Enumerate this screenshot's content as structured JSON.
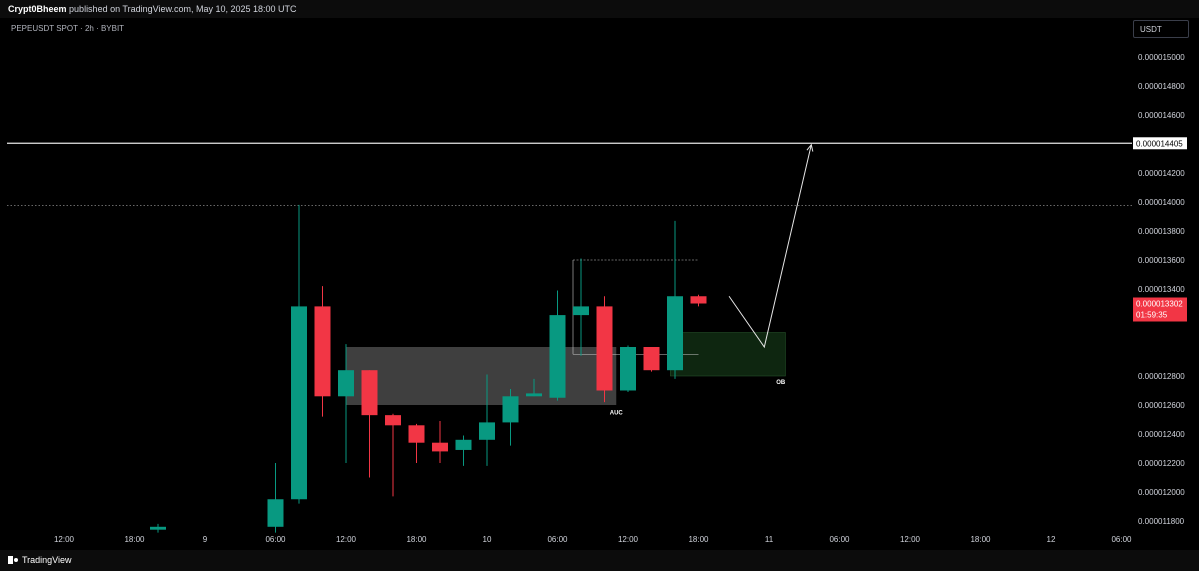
{
  "header": {
    "author": "Crypt0Bheem",
    "published": "published on TradingView.com, May 10, 2025 18:00 UTC"
  },
  "symbol_line": "PEPEUSDT SPOT · 2h · BYBIT",
  "unit": "USDT",
  "footer": {
    "brand": "TradingView"
  },
  "colors": {
    "up": "#089981",
    "down": "#f23645",
    "background": "#000000",
    "zone_gray": "#4a4a4a",
    "zone_green": "#0f2a12"
  },
  "chart_data": {
    "type": "candlestick",
    "title": "",
    "ylim": [
      1.175e-05,
      1.52e-05
    ],
    "y_ticks": [
      "0.000015000",
      "0.000014800",
      "0.000014600",
      "0.000014200",
      "0.000014000",
      "0.000013800",
      "0.000013600",
      "0.000013400",
      "0.000012800",
      "0.000012600",
      "0.000012400",
      "0.000012200",
      "0.000012000",
      "0.000011800"
    ],
    "y_tick_values": [
      1.5e-05,
      1.48e-05,
      1.46e-05,
      1.42e-05,
      1.4e-05,
      1.38e-05,
      1.36e-05,
      1.34e-05,
      1.28e-05,
      1.26e-05,
      1.24e-05,
      1.22e-05,
      1.2e-05,
      1.18e-05
    ],
    "x_ticks": [
      {
        "label": "12:00",
        "i": -18
      },
      {
        "label": "18:00",
        "i": -15
      },
      {
        "label": "9",
        "i": -12
      },
      {
        "label": "06:00",
        "i": -9
      },
      {
        "label": "12:00",
        "i": -6
      },
      {
        "label": "18:00",
        "i": -3
      },
      {
        "label": "10",
        "i": 0
      },
      {
        "label": "06:00",
        "i": 3
      },
      {
        "label": "12:00",
        "i": 6
      },
      {
        "label": "18:00",
        "i": 9
      },
      {
        "label": "11",
        "i": 12
      },
      {
        "label": "06:00",
        "i": 15
      },
      {
        "label": "12:00",
        "i": 18
      },
      {
        "label": "18:00",
        "i": 21
      },
      {
        "label": "12",
        "i": 24
      },
      {
        "label": "06:00",
        "i": 27
      }
    ],
    "candles": [
      {
        "i": -14,
        "o": 1.174e-05,
        "h": 1.178e-05,
        "l": 1.172e-05,
        "c": 1.176e-05
      },
      {
        "i": -9,
        "o": 1.176e-05,
        "h": 1.22e-05,
        "l": 1.172e-05,
        "c": 1.195e-05
      },
      {
        "i": -8,
        "o": 1.195e-05,
        "h": 1.398e-05,
        "l": 1.192e-05,
        "c": 1.328e-05
      },
      {
        "i": -7,
        "o": 1.328e-05,
        "h": 1.342e-05,
        "l": 1.252e-05,
        "c": 1.266e-05
      },
      {
        "i": -6,
        "o": 1.266e-05,
        "h": 1.302e-05,
        "l": 1.22e-05,
        "c": 1.284e-05
      },
      {
        "i": -5,
        "o": 1.284e-05,
        "h": 1.284e-05,
        "l": 1.21e-05,
        "c": 1.253e-05
      },
      {
        "i": -4,
        "o": 1.253e-05,
        "h": 1.254e-05,
        "l": 1.197e-05,
        "c": 1.246e-05
      },
      {
        "i": -3,
        "o": 1.246e-05,
        "h": 1.247e-05,
        "l": 1.22e-05,
        "c": 1.234e-05
      },
      {
        "i": -2,
        "o": 1.234e-05,
        "h": 1.249e-05,
        "l": 1.22e-05,
        "c": 1.228e-05
      },
      {
        "i": -1,
        "o": 1.229e-05,
        "h": 1.239e-05,
        "l": 1.218e-05,
        "c": 1.236e-05
      },
      {
        "i": 0,
        "o": 1.236e-05,
        "h": 1.281e-05,
        "l": 1.218e-05,
        "c": 1.248e-05
      },
      {
        "i": 1,
        "o": 1.248e-05,
        "h": 1.271e-05,
        "l": 1.232e-05,
        "c": 1.266e-05
      },
      {
        "i": 2,
        "o": 1.266e-05,
        "h": 1.278e-05,
        "l": 1.266e-05,
        "c": 1.268e-05
      },
      {
        "i": 3,
        "o": 1.265e-05,
        "h": 1.339e-05,
        "l": 1.263e-05,
        "c": 1.322e-05
      },
      {
        "i": 4,
        "o": 1.322e-05,
        "h": 1.361e-05,
        "l": 1.294e-05,
        "c": 1.328e-05
      },
      {
        "i": 5,
        "o": 1.328e-05,
        "h": 1.335e-05,
        "l": 1.262e-05,
        "c": 1.27e-05
      },
      {
        "i": 6,
        "o": 1.27e-05,
        "h": 1.301e-05,
        "l": 1.269e-05,
        "c": 1.3e-05
      },
      {
        "i": 7,
        "o": 1.3e-05,
        "h": 1.3e-05,
        "l": 1.283e-05,
        "c": 1.284e-05
      },
      {
        "i": 8,
        "o": 1.284e-05,
        "h": 1.387e-05,
        "l": 1.278e-05,
        "c": 1.335e-05
      },
      {
        "i": 9,
        "o": 1.335e-05,
        "h": 1.336e-05,
        "l": 1.328e-05,
        "c": 1.33e-05
      }
    ],
    "horizontal_lines": [
      {
        "value": 1.4405e-05,
        "style": "solid",
        "label": "0.000014405"
      },
      {
        "value": 1.3975e-05,
        "style": "dotted"
      }
    ],
    "zones": [
      {
        "x0": -6,
        "x1": 5.5,
        "y0": 1.26e-05,
        "y1": 1.3e-05,
        "color": "gray"
      },
      {
        "x0": 7.8,
        "x1": 12.7,
        "y0": 1.28e-05,
        "y1": 1.31e-05,
        "color": "green",
        "label": "OB"
      }
    ],
    "annotations": [
      {
        "text": "AUC",
        "i": 5.5,
        "y": 1.259e-05
      },
      {
        "text": "OB",
        "i": 12.5,
        "y": 1.28e-05
      }
    ],
    "projection": [
      {
        "i": 10.3,
        "y": 1.335e-05
      },
      {
        "i": 11.8,
        "y": 1.3e-05
      },
      {
        "i": 13.8,
        "y": 1.4395e-05
      }
    ],
    "last_price": {
      "value": 1.33e-05,
      "label": "0.000013302",
      "countdown": "01:59:35"
    }
  }
}
